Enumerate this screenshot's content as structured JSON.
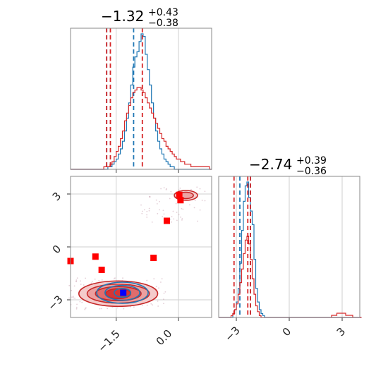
{
  "chart_data": [
    {
      "type": "corner",
      "panel": "histogram-x",
      "title": {
        "value": "−1.32",
        "plus": "+0.43",
        "minus": "−0.38"
      },
      "xlim": [
        -2.6,
        0.8
      ],
      "grid": true,
      "series": [
        {
          "name": "",
          "color": "#1f77b4",
          "lines_x": [
            -1.73,
            -1.08
          ],
          "bin_start": -2.6,
          "bin_width": 0.05,
          "counts": [
            0,
            0,
            0,
            0,
            0,
            0,
            0,
            0,
            0,
            0,
            0,
            0,
            0,
            0,
            0,
            0,
            0,
            0,
            1,
            1,
            2,
            3,
            4,
            6,
            8,
            11,
            15,
            20,
            26,
            33,
            40,
            44,
            46,
            50,
            53,
            52,
            45,
            39,
            33,
            26,
            20,
            15,
            11,
            8,
            6,
            4,
            3,
            2,
            1,
            1,
            0,
            0,
            0,
            0,
            0,
            0,
            0,
            0,
            0,
            0,
            0,
            0,
            0,
            0,
            0,
            0,
            0,
            0
          ]
        },
        {
          "name": "",
          "color": "#d62728",
          "lines_x": [
            -1.73,
            -1.64,
            -0.87
          ],
          "bin_start": -2.6,
          "bin_width": 0.05,
          "counts": [
            0,
            0,
            0,
            0,
            0,
            0,
            0,
            0,
            0,
            0,
            0,
            0,
            0,
            0,
            0,
            0,
            1,
            1,
            1,
            2,
            3,
            5,
            7,
            9,
            12,
            15,
            19,
            22,
            25,
            28,
            30,
            31,
            32,
            32,
            31,
            30,
            28,
            26,
            24,
            22,
            20,
            18,
            16,
            14,
            12,
            11,
            9,
            8,
            7,
            6,
            5,
            4,
            4,
            3,
            3,
            2,
            2,
            2,
            1,
            1,
            1,
            1,
            1,
            1,
            1,
            1,
            1,
            0
          ]
        }
      ]
    },
    {
      "type": "corner",
      "panel": "histogram-y",
      "title": {
        "value": "−2.74",
        "plus": "+0.39",
        "minus": "−0.36"
      },
      "xlim": [
        -4.0,
        4.0
      ],
      "xticks": [
        "−3",
        "0",
        "3"
      ],
      "grid": true,
      "series": [
        {
          "name": "",
          "color": "#1f77b4",
          "lines_x": [
            -2.8,
            -2.2
          ],
          "bin_start": -4.0,
          "bin_width": 0.1,
          "counts": [
            0,
            0,
            0,
            0,
            0,
            0,
            0,
            0,
            2,
            4,
            8,
            15,
            28,
            45,
            60,
            68,
            70,
            62,
            55,
            48,
            30,
            15,
            8,
            4,
            2,
            1,
            0,
            0,
            0,
            0,
            0,
            0,
            0,
            0,
            0,
            0,
            0,
            0,
            0,
            0,
            0,
            0,
            0,
            0,
            0,
            0,
            0,
            0,
            0,
            0,
            0,
            0,
            0,
            0,
            0,
            0,
            0,
            0,
            0,
            0,
            0,
            0,
            0,
            0,
            0,
            0,
            0,
            0,
            0,
            0,
            0,
            0,
            0,
            0,
            0,
            0,
            0,
            0,
            0,
            0,
            0
          ]
        },
        {
          "name": "",
          "color": "#d62728",
          "lines_x": [
            -3.13,
            -2.35,
            -2.2
          ],
          "bin_start": -4.0,
          "bin_width": 0.1,
          "counts": [
            0,
            0,
            0,
            0,
            0,
            0,
            0,
            1,
            2,
            4,
            7,
            12,
            18,
            25,
            33,
            40,
            42,
            38,
            30,
            20,
            12,
            6,
            3,
            1,
            0,
            0,
            0,
            0,
            0,
            0,
            0,
            0,
            0,
            0,
            0,
            0,
            0,
            0,
            0,
            0,
            0,
            0,
            0,
            0,
            0,
            0,
            0,
            0,
            0,
            0,
            0,
            0,
            0,
            0,
            0,
            0,
            0,
            0,
            0,
            0,
            0,
            0,
            0,
            0,
            0,
            0,
            0,
            0,
            0,
            0,
            0,
            0,
            0,
            0,
            0,
            0,
            0,
            0,
            0,
            0,
            0
          ]
        }
      ]
    },
    {
      "type": "scatter",
      "panel": "2d-contour",
      "xlim": [
        -2.6,
        0.8
      ],
      "ylim": [
        -4.0,
        4.0
      ],
      "xticks": [
        "−1.5",
        "0.0"
      ],
      "yticks": [
        "−3",
        "0",
        "3"
      ],
      "grid": true,
      "series": [
        {
          "name": "",
          "color": "#ff0000",
          "marker": "square",
          "points": [
            [
              -2.6,
              -0.8
            ],
            [
              -2.0,
              -0.55
            ],
            [
              -1.85,
              -1.3
            ],
            [
              -0.6,
              -0.62
            ],
            [
              -0.28,
              1.48
            ],
            [
              0.02,
              2.95
            ],
            [
              0.05,
              2.65
            ]
          ]
        },
        {
          "name": "",
          "color": "#0000ff",
          "marker": "square",
          "points": [
            [
              -1.33,
              -2.6
            ]
          ]
        }
      ],
      "contours": [
        {
          "color": "#d62728",
          "center": [
            -1.45,
            -2.65
          ],
          "levels": [
            [
              0.95,
              0.72
            ],
            [
              0.75,
              0.54
            ],
            [
              0.55,
              0.4
            ],
            [
              0.3,
              0.28
            ]
          ]
        },
        {
          "color": "#d62728",
          "center": [
            0.18,
            2.92
          ],
          "levels": [
            [
              0.28,
              0.28
            ],
            [
              0.18,
              0.18
            ]
          ]
        },
        {
          "color": "#1f77b4",
          "center": [
            -1.35,
            -2.6
          ],
          "levels": [
            [
              0.62,
              0.6
            ],
            [
              0.42,
              0.42
            ],
            [
              0.2,
              0.25
            ]
          ]
        }
      ]
    }
  ]
}
